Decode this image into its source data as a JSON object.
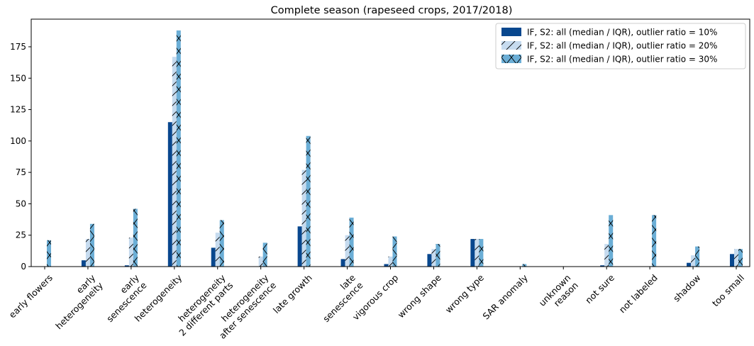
{
  "chart_data": {
    "type": "bar",
    "title": "Complete season (rapeseed crops, 2017/2018)",
    "categories": [
      "early flowers",
      "early\nheterogeneity",
      "early\nsenescence",
      "heterogeneity",
      "heterogeneity\n2 different parts",
      "heterogeneity\nafter senescence",
      "late growth",
      "late\nsenescence",
      "vigorous crop",
      "wrong shape",
      "wrong type",
      "SAR anomaly",
      "unknown\nreason",
      "not sure",
      "not labeled",
      "shadow",
      "too small"
    ],
    "series": [
      {
        "name": "IF, S2: all (median / IQR), outlier ratio = 10%",
        "color": "#08478e",
        "hatch": "none",
        "values": [
          0,
          5,
          1,
          115,
          15,
          0,
          32,
          6,
          2,
          10,
          22,
          0,
          0,
          1,
          0,
          3,
          10
        ]
      },
      {
        "name": "IF, S2: all (median / IQR), outlier ratio = 20%",
        "color": "#c6dbef",
        "hatch": "/",
        "values": [
          0,
          22,
          23,
          167,
          27,
          8,
          77,
          25,
          8,
          14,
          22,
          0,
          0,
          18,
          0,
          9,
          14
        ]
      },
      {
        "name": "IF, S2: all (median / IQR), outlier ratio = 30%",
        "color": "#6baed6",
        "hatch": "x",
        "values": [
          21,
          34,
          46,
          188,
          37,
          19,
          104,
          39,
          24,
          18,
          22,
          2,
          0,
          41,
          41,
          16,
          14
        ]
      }
    ],
    "ylim": [
      0,
      197
    ],
    "yticks": [
      0,
      25,
      50,
      75,
      100,
      125,
      150,
      175
    ],
    "legend": "upper right"
  }
}
